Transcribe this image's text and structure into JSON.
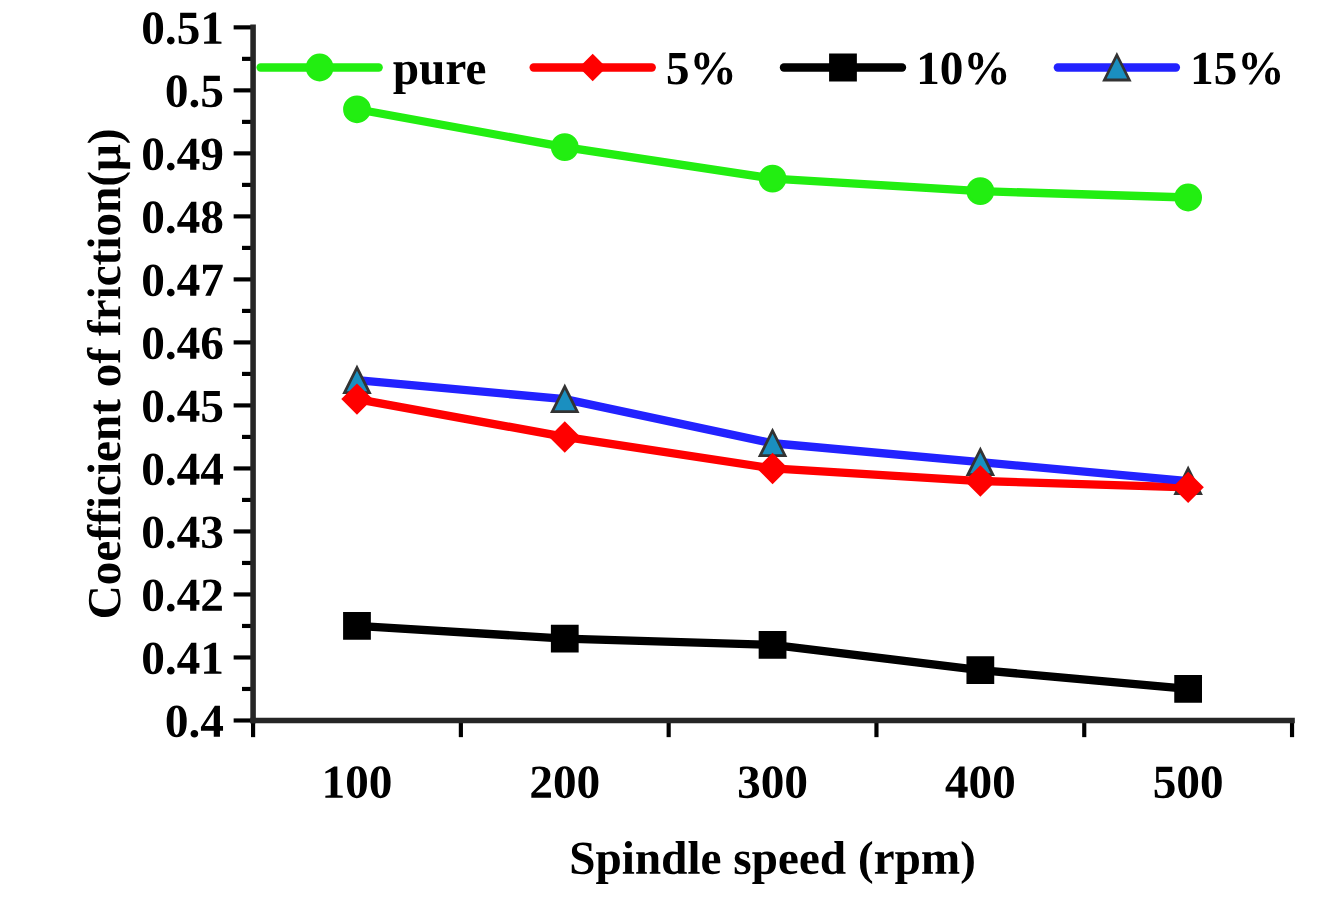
{
  "chart_data": {
    "type": "line",
    "xlabel": "Spindle speed (rpm)",
    "ylabel": "Coefficient of friction(μ)",
    "categories": [
      "100",
      "200",
      "300",
      "400",
      "500"
    ],
    "series": [
      {
        "name": "pure",
        "color": "#22ee11",
        "marker": "circle",
        "values": [
          0.497,
          0.491,
          0.486,
          0.484,
          0.483
        ]
      },
      {
        "name": "5%",
        "color": "#ff0000",
        "marker": "diamond",
        "values": [
          0.451,
          0.445,
          0.44,
          0.438,
          0.437
        ]
      },
      {
        "name": "10%",
        "color": "#000000",
        "marker": "square",
        "values": [
          0.415,
          0.413,
          0.412,
          0.408,
          0.405
        ]
      },
      {
        "name": "15%",
        "color": "#2222ff",
        "marker": "triangle",
        "values": [
          0.454,
          0.451,
          0.444,
          0.441,
          0.438
        ]
      }
    ],
    "ylim": [
      0.4,
      0.51
    ],
    "yticks": [
      {
        "value": 0.4,
        "label": "0.4"
      },
      0.41,
      0.42,
      0.43,
      0.44,
      0.45,
      0.46,
      0.47,
      0.48,
      0.49,
      {
        "value": 0.5,
        "label": "0.5"
      },
      0.51
    ],
    "grid": false,
    "legend": "top"
  }
}
